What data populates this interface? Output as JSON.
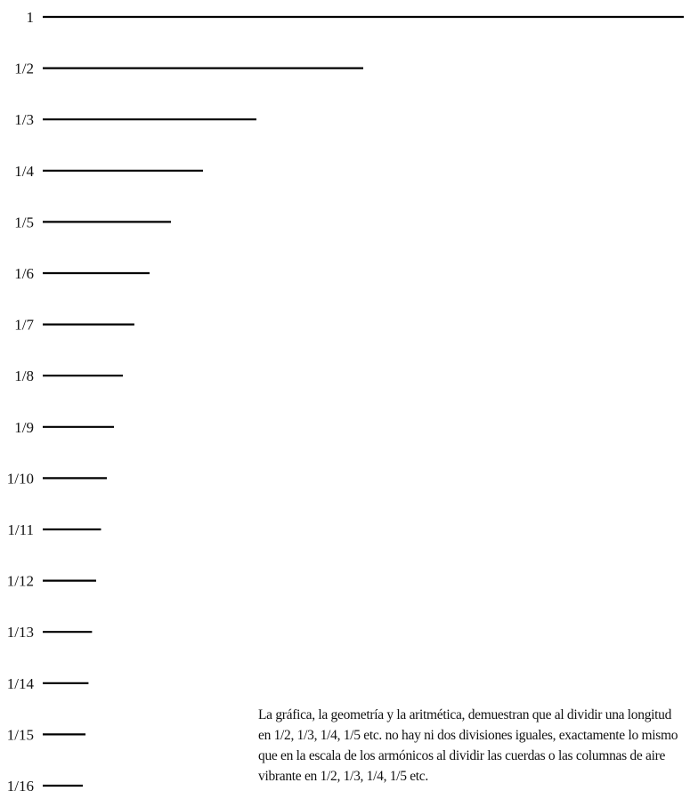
{
  "rows": [
    {
      "label": "1",
      "fraction": 1
    },
    {
      "label": "1/2",
      "fraction": 0.5
    },
    {
      "label": "1/3",
      "fraction": 0.3333
    },
    {
      "label": "1/4",
      "fraction": 0.25
    },
    {
      "label": "1/5",
      "fraction": 0.2
    },
    {
      "label": "1/6",
      "fraction": 0.1667
    },
    {
      "label": "1/7",
      "fraction": 0.1429
    },
    {
      "label": "1/8",
      "fraction": 0.125
    },
    {
      "label": "1/9",
      "fraction": 0.1111
    },
    {
      "label": "1/10",
      "fraction": 0.1
    },
    {
      "label": "1/11",
      "fraction": 0.0909
    },
    {
      "label": "1/12",
      "fraction": 0.0833
    },
    {
      "label": "1/13",
      "fraction": 0.0769
    },
    {
      "label": "1/14",
      "fraction": 0.0714
    },
    {
      "label": "1/15",
      "fraction": 0.0667
    },
    {
      "label": "1/16",
      "fraction": 0.0625
    }
  ],
  "caption": {
    "lines": [
      "La gráfica, la geometría y la aritmética, demuestran que al dividir una longitud",
      "en 1/2, 1/3, 1/4, 1/5 etc. no hay ni dos divisiones iguales, exactamente lo mismo",
      "que en la escala de los armónicos al dividir las cuerdas o las columnas de aire",
      "vibrante en 1/2, 1/3, 1/4, 1/5 etc."
    ]
  }
}
